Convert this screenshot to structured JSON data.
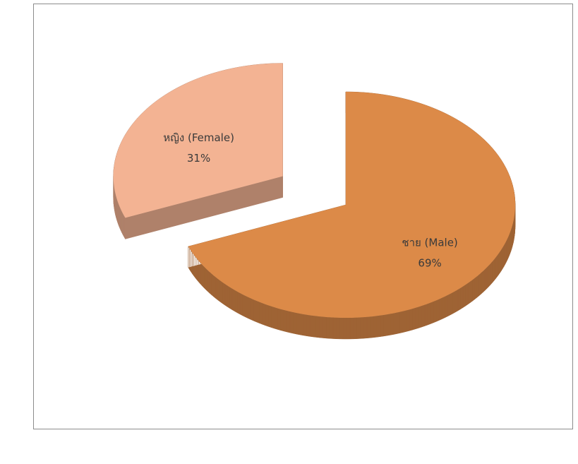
{
  "chart_data": {
    "type": "pie",
    "categories": [
      "ชาย (Male)",
      "หญิง (Female)"
    ],
    "values": [
      69,
      31
    ],
    "value_labels": [
      "69%",
      "31%"
    ],
    "colors": [
      "#dc8a48",
      "#f3b393"
    ]
  }
}
